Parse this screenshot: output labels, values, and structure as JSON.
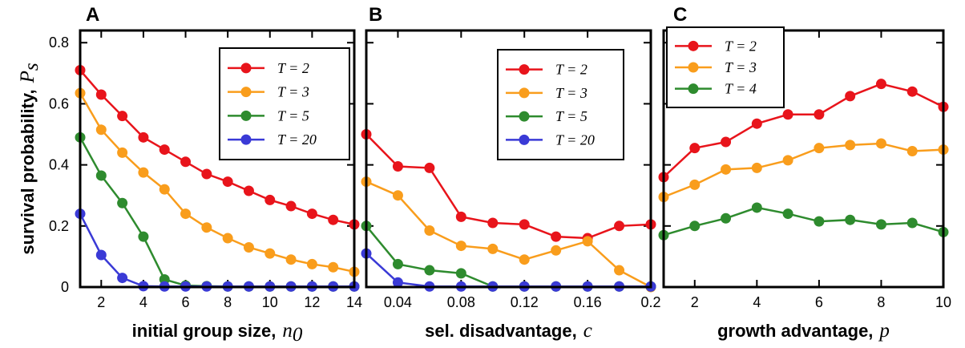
{
  "colors": {
    "red": "#e8141b",
    "orange": "#f99d1c",
    "green": "#2e8b2e",
    "blue": "#3a3ad6"
  },
  "y_axis": {
    "label": "survival probability,",
    "symbol": "P",
    "symbol_sub": "s"
  },
  "chart_data": [
    {
      "panel": "A",
      "type": "line",
      "xlabel": "initial group size,",
      "xlabel_symbol": "n",
      "xlabel_sub": "0",
      "xlim": [
        1,
        14
      ],
      "ylim": [
        0,
        0.84
      ],
      "xticks": [
        2,
        4,
        6,
        8,
        10,
        12,
        14
      ],
      "xtick_labels": [
        "2",
        "4",
        "6",
        "8",
        "10",
        "12",
        "14"
      ],
      "yticks": [
        0,
        0.2,
        0.4,
        0.6,
        0.8
      ],
      "ytick_labels": [
        "0",
        "0.2",
        "0.4",
        "0.6",
        "0.8"
      ],
      "legend_position": "top-right",
      "x": [
        1,
        2,
        3,
        4,
        5,
        6,
        7,
        8,
        9,
        10,
        11,
        12,
        13,
        14
      ],
      "series": [
        {
          "name": "T = 2",
          "color": "red",
          "values": [
            0.71,
            0.63,
            0.56,
            0.49,
            0.45,
            0.41,
            0.37,
            0.345,
            0.315,
            0.285,
            0.265,
            0.24,
            0.22,
            0.205
          ]
        },
        {
          "name": "T = 3",
          "color": "orange",
          "values": [
            0.635,
            0.515,
            0.44,
            0.375,
            0.32,
            0.24,
            0.195,
            0.16,
            0.13,
            0.11,
            0.09,
            0.075,
            0.065,
            0.05
          ]
        },
        {
          "name": "T = 5",
          "color": "green",
          "values": [
            0.49,
            0.365,
            0.275,
            0.165,
            0.025,
            0.005,
            0.003,
            0.002,
            0.002,
            0.002,
            0.002,
            0.002,
            0.002,
            0.002
          ]
        },
        {
          "name": "T = 20",
          "color": "blue",
          "values": [
            0.24,
            0.105,
            0.03,
            0.003,
            0.002,
            0.002,
            0.002,
            0.002,
            0.002,
            0.002,
            0.002,
            0.002,
            0.002,
            0.002
          ]
        }
      ]
    },
    {
      "panel": "B",
      "type": "line",
      "xlabel": "sel. disadvantage,",
      "xlabel_symbol": "c",
      "xlabel_sub": "",
      "xlim": [
        0.02,
        0.2
      ],
      "ylim": [
        0,
        0.84
      ],
      "xticks": [
        0.04,
        0.08,
        0.12,
        0.16,
        0.2
      ],
      "xtick_labels": [
        "0.04",
        "0.08",
        "0.12",
        "0.16",
        "0.2"
      ],
      "yticks": [
        0,
        0.2,
        0.4,
        0.6,
        0.8
      ],
      "ytick_labels": [],
      "legend_position": "top-right",
      "x": [
        0.02,
        0.04,
        0.06,
        0.08,
        0.1,
        0.12,
        0.14,
        0.16,
        0.18,
        0.2
      ],
      "series": [
        {
          "name": "T = 2",
          "color": "red",
          "values": [
            0.5,
            0.395,
            0.39,
            0.23,
            0.21,
            0.205,
            0.165,
            0.16,
            0.2,
            0.205
          ]
        },
        {
          "name": "T = 3",
          "color": "orange",
          "values": [
            0.345,
            0.3,
            0.185,
            0.135,
            0.125,
            0.09,
            0.12,
            0.15,
            0.055,
            0.0
          ]
        },
        {
          "name": "T = 5",
          "color": "green",
          "values": [
            0.2,
            0.075,
            0.055,
            0.045,
            0.002,
            0.002,
            0.002,
            0.002,
            0.002,
            0.002
          ]
        },
        {
          "name": "T = 20",
          "color": "blue",
          "values": [
            0.11,
            0.015,
            0.002,
            0.002,
            0.002,
            0.002,
            0.002,
            0.002,
            0.002,
            0.002
          ]
        }
      ]
    },
    {
      "panel": "C",
      "type": "line",
      "xlabel": "growth advantage,",
      "xlabel_symbol": "p",
      "xlabel_sub": "",
      "xlim": [
        1,
        10
      ],
      "ylim": [
        0,
        0.84
      ],
      "xticks": [
        2,
        4,
        6,
        8,
        10
      ],
      "xtick_labels": [
        "2",
        "4",
        "6",
        "8",
        "10"
      ],
      "yticks": [
        0,
        0.2,
        0.4,
        0.6,
        0.8
      ],
      "ytick_labels": [],
      "legend_position": "top-left",
      "x": [
        1,
        2,
        3,
        4,
        5,
        6,
        7,
        8,
        9,
        10
      ],
      "series": [
        {
          "name": "T = 2",
          "color": "red",
          "values": [
            0.36,
            0.455,
            0.475,
            0.535,
            0.565,
            0.565,
            0.625,
            0.665,
            0.64,
            0.59
          ]
        },
        {
          "name": "T = 3",
          "color": "orange",
          "values": [
            0.295,
            0.335,
            0.385,
            0.39,
            0.415,
            0.455,
            0.465,
            0.47,
            0.445,
            0.45
          ]
        },
        {
          "name": "T = 4",
          "color": "green",
          "values": [
            0.17,
            0.2,
            0.225,
            0.26,
            0.24,
            0.215,
            0.22,
            0.205,
            0.21,
            0.18
          ]
        }
      ]
    }
  ]
}
